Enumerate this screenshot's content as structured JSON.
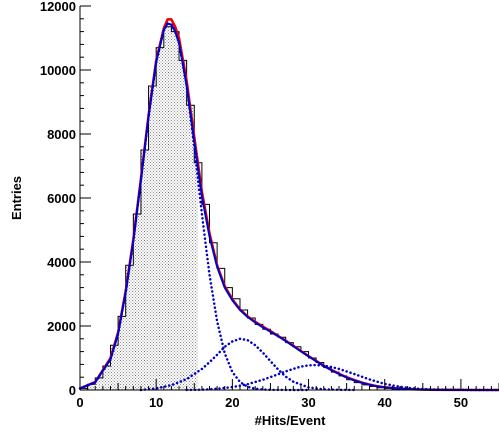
{
  "chart_data": {
    "type": "histogram",
    "xlabel": "#Hits/Event",
    "ylabel": "Entries",
    "xlim": [
      0,
      55
    ],
    "ylim": [
      0,
      12000
    ],
    "grid": false,
    "x_ticks": [
      0,
      10,
      20,
      30,
      40,
      50
    ],
    "y_ticks": [
      0,
      2000,
      4000,
      6000,
      8000,
      10000,
      12000
    ],
    "shaded_region": {
      "x_from": 0,
      "x_to": 15.5,
      "fill": "hatched-grey"
    },
    "histogram": {
      "bin_width": 1,
      "x": [
        0.5,
        1.5,
        2.5,
        3.5,
        4.5,
        5.5,
        6.5,
        7.5,
        8.5,
        9.5,
        10.5,
        11.5,
        12.5,
        13.5,
        14.5,
        15.5,
        16.5,
        17.5,
        18.5,
        19.5,
        20.5,
        21.5,
        22.5,
        23.5,
        24.5,
        25.5,
        26.5,
        27.5,
        28.5,
        29.5,
        30.5,
        31.5,
        32.5,
        33.5,
        34.5,
        35.5,
        36.5,
        37.5,
        38.5,
        39.5,
        40.5,
        41.5,
        42.5,
        43.5,
        44.5,
        45.5,
        46.5,
        47.5,
        48.5,
        49.5,
        50.5,
        51.5,
        52.5,
        53.5,
        54.5
      ],
      "y": [
        50,
        180,
        380,
        750,
        1400,
        2300,
        3900,
        5500,
        7500,
        9500,
        10700,
        11350,
        11200,
        10300,
        8900,
        7100,
        5800,
        4600,
        3800,
        3200,
        2850,
        2500,
        2250,
        2050,
        1900,
        1750,
        1650,
        1480,
        1350,
        1200,
        1000,
        860,
        700,
        560,
        440,
        320,
        230,
        160,
        110,
        70,
        45,
        30,
        20,
        15,
        10,
        8,
        5,
        4,
        3,
        2,
        2,
        1,
        1,
        1,
        1
      ],
      "color": "#000000"
    },
    "series": [
      {
        "name": "",
        "style": "solid",
        "color": "#ee0000",
        "x": [
          0,
          2,
          4,
          5,
          6,
          7,
          8,
          9,
          10,
          11,
          11.5,
          12,
          12.5,
          13,
          14,
          15,
          16,
          17,
          18,
          19,
          20,
          21,
          22,
          23,
          24,
          25,
          26,
          27,
          28,
          29,
          30,
          31,
          32,
          33,
          34,
          35,
          36,
          37,
          38,
          39,
          40,
          42,
          44,
          46,
          48,
          50,
          52,
          55
        ],
        "y": [
          50,
          250,
          1000,
          1800,
          3100,
          4700,
          6600,
          8600,
          10300,
          11300,
          11580,
          11580,
          11350,
          11000,
          9650,
          7900,
          6200,
          4900,
          3900,
          3250,
          2830,
          2520,
          2300,
          2130,
          1980,
          1840,
          1690,
          1540,
          1380,
          1220,
          1060,
          910,
          760,
          630,
          510,
          400,
          310,
          230,
          170,
          120,
          85,
          40,
          18,
          8,
          4,
          2,
          1,
          0
        ]
      },
      {
        "name": "",
        "style": "solid",
        "color": "#0000cc",
        "x": [
          0,
          2,
          4,
          5,
          6,
          7,
          8,
          9,
          10,
          11,
          11.5,
          12,
          12.5,
          13,
          14,
          15,
          16,
          17,
          18,
          19,
          20,
          21,
          22,
          23,
          24,
          25,
          26,
          27,
          28,
          29,
          30,
          31,
          32,
          33,
          34,
          35,
          36,
          37,
          38,
          39,
          40,
          42,
          44,
          46,
          48,
          50,
          52,
          55
        ],
        "y": [
          50,
          240,
          960,
          1760,
          3050,
          4650,
          6550,
          8550,
          10250,
          11250,
          11450,
          11420,
          11200,
          10850,
          9500,
          7750,
          6050,
          4800,
          3850,
          3200,
          2800,
          2500,
          2280,
          2110,
          1960,
          1820,
          1680,
          1530,
          1370,
          1210,
          1050,
          900,
          750,
          620,
          500,
          390,
          300,
          225,
          165,
          115,
          80,
          38,
          17,
          7,
          3,
          1,
          0,
          0
        ]
      },
      {
        "name": "",
        "style": "dotted",
        "color": "#0000cc",
        "x": [
          0,
          2,
          4,
          5,
          6,
          7,
          8,
          9,
          10,
          11,
          11.5,
          12,
          12.5,
          13,
          14,
          15,
          16,
          17,
          18,
          19,
          20,
          21,
          22,
          23,
          24,
          25,
          26,
          28,
          30
        ],
        "y": [
          50,
          240,
          960,
          1760,
          3050,
          4650,
          6550,
          8550,
          10250,
          11250,
          11450,
          11420,
          11200,
          10850,
          9500,
          7600,
          5500,
          3600,
          2150,
          1150,
          560,
          250,
          100,
          40,
          15,
          5,
          2,
          0,
          0
        ]
      },
      {
        "name": "",
        "style": "dotted",
        "color": "#0000cc",
        "x": [
          8,
          10,
          12,
          14,
          16,
          17,
          18,
          19,
          20,
          21,
          22,
          23,
          24,
          25,
          26,
          27,
          28,
          30,
          32,
          34,
          36
        ],
        "y": [
          0,
          50,
          150,
          340,
          660,
          870,
          1100,
          1350,
          1520,
          1600,
          1560,
          1400,
          1170,
          900,
          640,
          420,
          260,
          80,
          20,
          5,
          0
        ]
      },
      {
        "name": "",
        "style": "dotted",
        "color": "#0000cc",
        "x": [
          14,
          16,
          18,
          20,
          22,
          24,
          26,
          27,
          28,
          29,
          30,
          31,
          32,
          33,
          34,
          36,
          38,
          40,
          42,
          44,
          46,
          48,
          50,
          52,
          55
        ],
        "y": [
          0,
          10,
          40,
          90,
          180,
          320,
          490,
          580,
          660,
          730,
          770,
          780,
          760,
          720,
          660,
          500,
          330,
          190,
          100,
          45,
          20,
          8,
          3,
          1,
          0
        ]
      }
    ]
  }
}
